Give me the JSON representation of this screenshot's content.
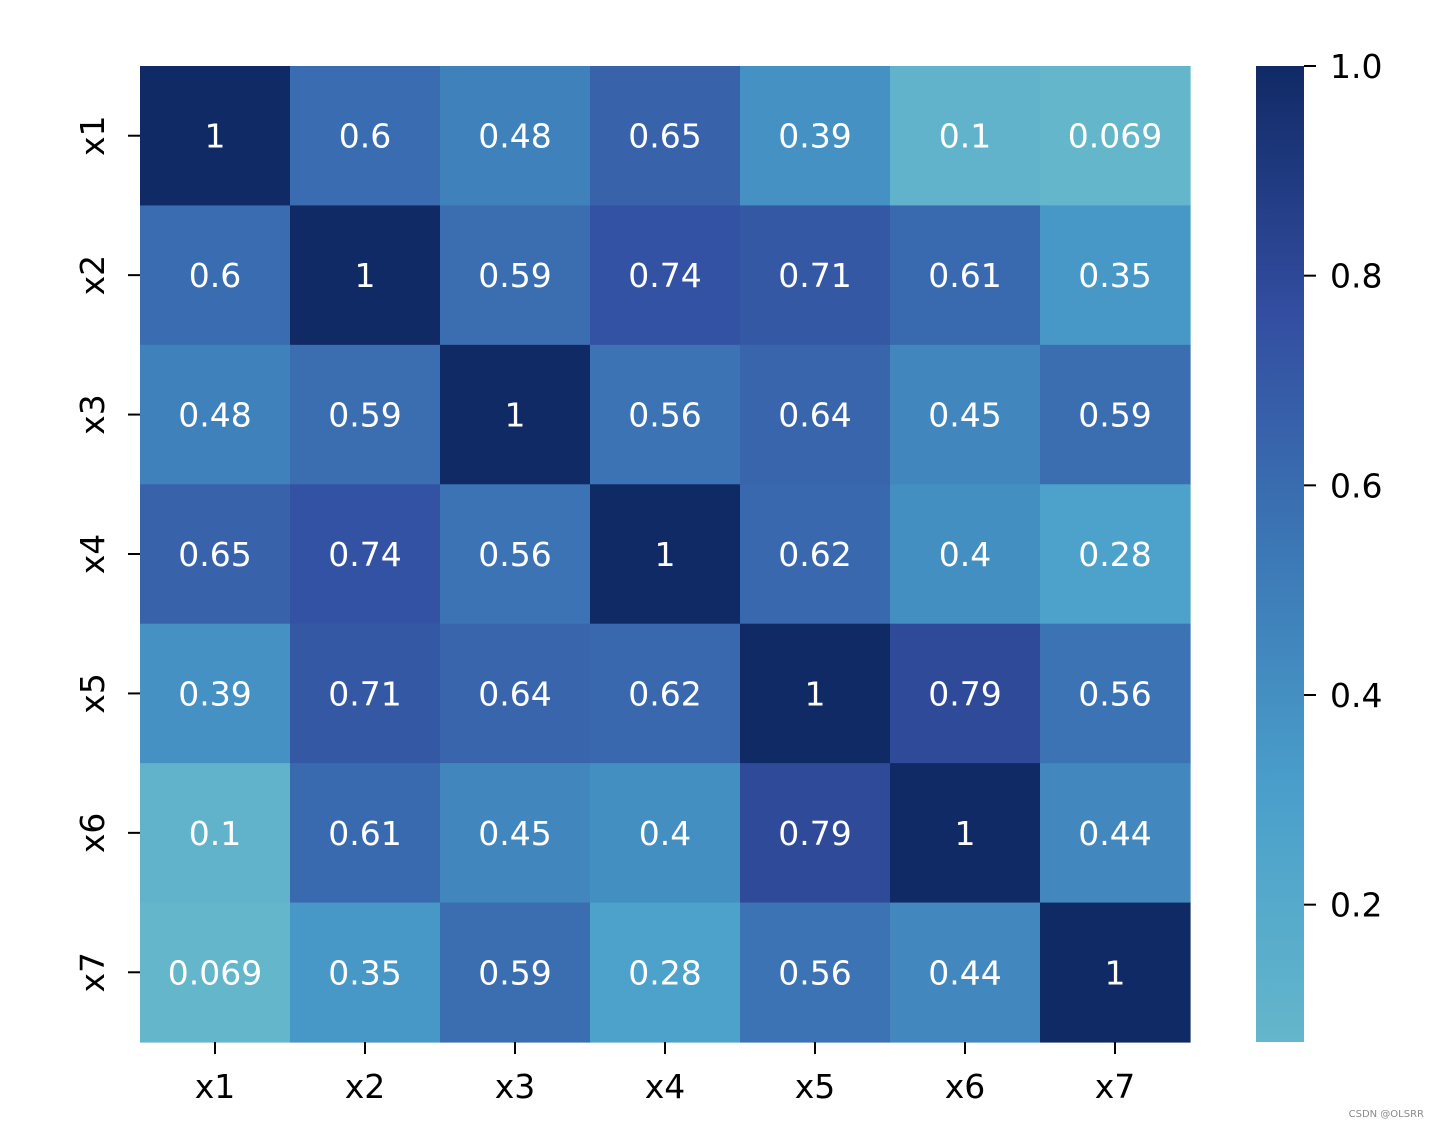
{
  "chart_data": {
    "type": "heatmap",
    "title": "",
    "xlabel": "",
    "ylabel": "",
    "x_categories": [
      "x1",
      "x2",
      "x3",
      "x4",
      "x5",
      "x6",
      "x7"
    ],
    "y_categories": [
      "x1",
      "x2",
      "x3",
      "x4",
      "x5",
      "x6",
      "x7"
    ],
    "values": [
      [
        "1",
        "0.6",
        "0.48",
        "0.65",
        "0.39",
        "0.1",
        "0.069"
      ],
      [
        "0.6",
        "1",
        "0.59",
        "0.74",
        "0.71",
        "0.61",
        "0.35"
      ],
      [
        "0.48",
        "0.59",
        "1",
        "0.56",
        "0.64",
        "0.45",
        "0.59"
      ],
      [
        "0.65",
        "0.74",
        "0.56",
        "1",
        "0.62",
        "0.4",
        "0.28"
      ],
      [
        "0.39",
        "0.71",
        "0.64",
        "0.62",
        "1",
        "0.79",
        "0.56"
      ],
      [
        "0.1",
        "0.61",
        "0.45",
        "0.4",
        "0.79",
        "1",
        "0.44"
      ],
      [
        "0.069",
        "0.35",
        "0.59",
        "0.28",
        "0.56",
        "0.44",
        "1"
      ]
    ],
    "colorbar": {
      "range": [
        0.069,
        1.0
      ],
      "ticks": [
        "0.2",
        "0.4",
        "0.6",
        "0.8",
        "1.0"
      ],
      "color_low": "#64b6cb",
      "color_high": "#102a66"
    },
    "annotation_color": "#ffffff"
  },
  "watermark": "CSDN @OLSRR"
}
